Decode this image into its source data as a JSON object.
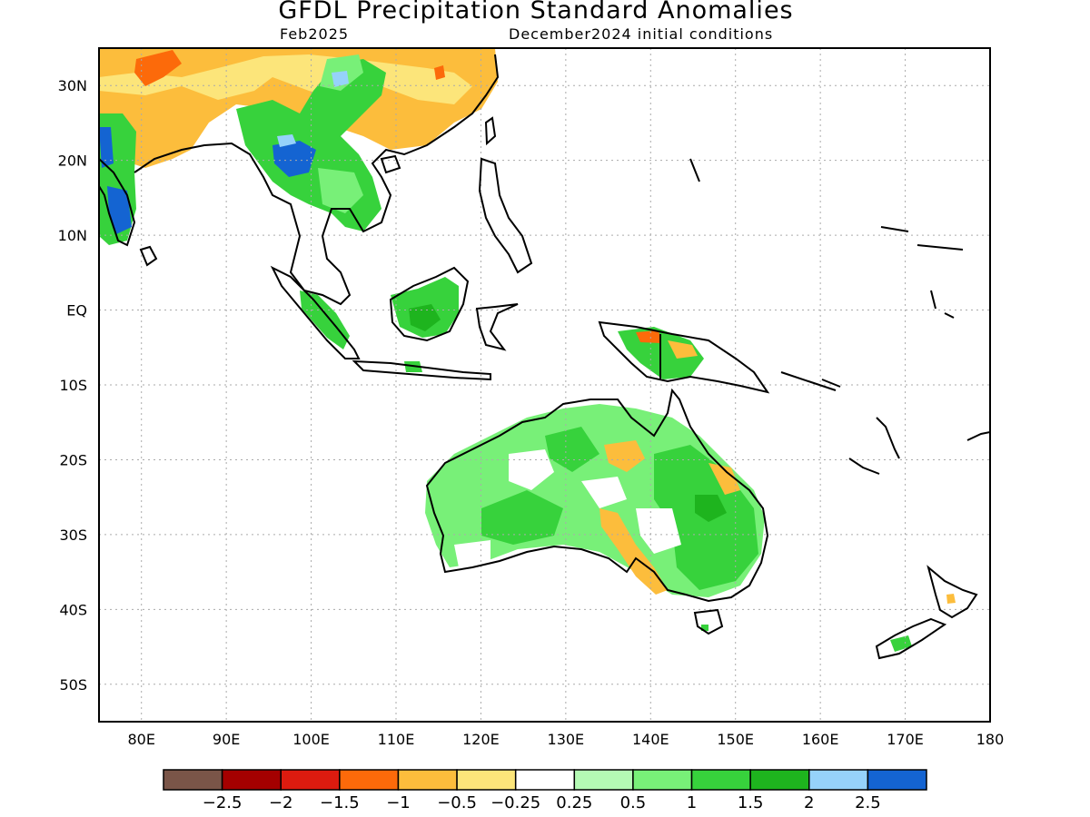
{
  "title": "GFDL Precipitation Standard Anomalies",
  "valid_month": "Feb2025",
  "init_conditions": "December2024 initial conditions",
  "lon_labels": [
    "80E",
    "90E",
    "100E",
    "110E",
    "120E",
    "130E",
    "140E",
    "150E",
    "160E",
    "170E",
    "180"
  ],
  "lat_labels": [
    "30N",
    "20N",
    "10N",
    "EQ",
    "10S",
    "20S",
    "30S",
    "40S",
    "50S"
  ],
  "colorbar": {
    "colors": [
      "#7a5548",
      "#a40000",
      "#dc1b0f",
      "#fc6a0a",
      "#fcbd3c",
      "#fce57a",
      "#ffffff",
      "#b4fab4",
      "#78f078",
      "#37d23c",
      "#1eb41e",
      "#96d2fa",
      "#1464d2"
    ],
    "labels": [
      "-2.5",
      "-2",
      "-1.5",
      "-1",
      "-0.5",
      "-0.25",
      "0.25",
      "0.5",
      "1",
      "1.5",
      "2",
      "2.5"
    ]
  },
  "regions": [
    {
      "name": "tibet-dry",
      "color": "#fcbd3c"
    },
    {
      "name": "india-wet",
      "color": "#1464d2"
    },
    {
      "name": "myanmar-wet",
      "color": "#1464d2"
    },
    {
      "name": "borneo-wet",
      "color": "#37d23c"
    },
    {
      "name": "australia-wet",
      "color": "#78f078"
    },
    {
      "name": "australia-dry",
      "color": "#fcbd3c"
    }
  ]
}
